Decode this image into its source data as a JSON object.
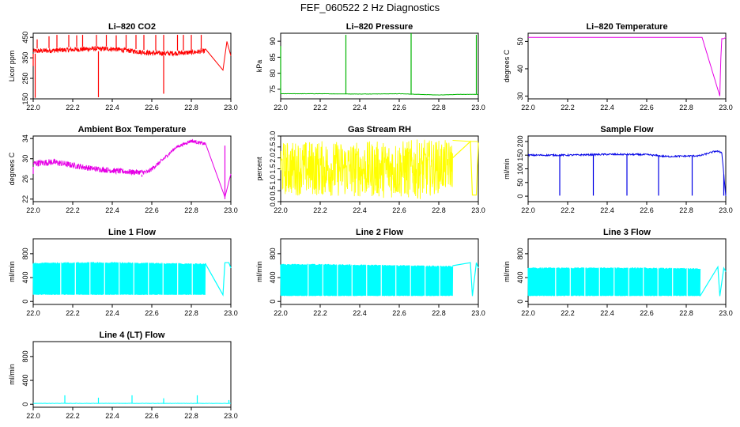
{
  "page_title": "FEF_060522  2 Hz Diagnostics",
  "chart_data": [
    {
      "id": "co2",
      "type": "line",
      "title": "Li–820 CO2",
      "ylabel": "Licor ppm",
      "color": "#ff0000",
      "xlim": [
        22.0,
        23.0
      ],
      "ylim": [
        150,
        470
      ],
      "xticks": [
        "22.0",
        "22.2",
        "22.4",
        "22.6",
        "22.8",
        "23.0"
      ],
      "yticks": [
        150,
        250,
        350,
        450
      ],
      "series": [
        {
          "name": "band_upper",
          "x": [
            22.0,
            22.1,
            22.2,
            22.3,
            22.4,
            22.5,
            22.6,
            22.7,
            22.8,
            22.87,
            22.96,
            22.98,
            23.0
          ],
          "y": [
            395,
            398,
            402,
            406,
            405,
            395,
            385,
            384,
            388,
            395,
            290,
            430,
            360
          ]
        },
        {
          "name": "band_lower",
          "x": [
            22.0,
            22.1,
            22.2,
            22.3,
            22.4,
            22.5,
            22.6,
            22.7,
            22.8,
            22.87
          ],
          "y": [
            370,
            374,
            378,
            382,
            382,
            372,
            360,
            360,
            364,
            372
          ]
        },
        {
          "name": "spikes_up",
          "x": [
            22.02,
            22.08,
            22.12,
            22.18,
            22.22,
            22.25,
            22.32,
            22.37,
            22.42,
            22.47,
            22.52,
            22.56,
            22.62,
            22.66,
            22.73,
            22.76,
            22.8,
            22.85
          ],
          "y": [
            440,
            455,
            462,
            462,
            460,
            462,
            462,
            462,
            460,
            462,
            462,
            462,
            462,
            462,
            462,
            462,
            462,
            462
          ]
        },
        {
          "name": "spikes_down",
          "x": [
            22.0,
            22.01,
            22.33,
            22.66
          ],
          "y": [
            310,
            155,
            158,
            175
          ]
        }
      ]
    },
    {
      "id": "pressure",
      "type": "line",
      "title": "Li–820 Pressure",
      "ylabel": "kPa",
      "color": "#00b400",
      "xlim": [
        22.0,
        23.0
      ],
      "ylim": [
        72,
        92.5
      ],
      "xticks": [
        "22.0",
        "22.2",
        "22.4",
        "22.6",
        "22.8",
        "23.0"
      ],
      "yticks": [
        75,
        80,
        85,
        90
      ],
      "series": [
        {
          "name": "baseline",
          "x": [
            22.0,
            22.2,
            22.4,
            22.6,
            22.8,
            22.9,
            23.0
          ],
          "y": [
            73.6,
            73.6,
            73.5,
            73.6,
            73.2,
            73.4,
            73.4
          ]
        },
        {
          "name": "spikes_up",
          "x": [
            22.0,
            22.33,
            22.66,
            22.99
          ],
          "y": [
            88.5,
            92.0,
            92.5,
            92.0
          ]
        }
      ]
    },
    {
      "id": "temperature",
      "type": "line",
      "title": "Li–820 Temperature",
      "ylabel": "degrees C",
      "color": "#e600e6",
      "xlim": [
        22.0,
        23.0
      ],
      "ylim": [
        29,
        53
      ],
      "xticks": [
        "22.0",
        "22.2",
        "22.4",
        "22.6",
        "22.8",
        "23.0"
      ],
      "yticks": [
        30,
        40,
        50
      ],
      "series": [
        {
          "name": "temp",
          "x": [
            22.0,
            22.88,
            22.97,
            22.975,
            22.98,
            22.99,
            23.0
          ],
          "y": [
            51.5,
            51.5,
            30.0,
            44.0,
            51.0,
            51.0,
            51.5
          ]
        }
      ]
    },
    {
      "id": "ambient",
      "type": "line",
      "title": "Ambient Box Temperature",
      "ylabel": "degrees C",
      "color": "#e600e6",
      "xlim": [
        22.0,
        23.0
      ],
      "ylim": [
        21.5,
        34.5
      ],
      "xticks": [
        "22.0",
        "22.2",
        "22.4",
        "22.6",
        "22.8",
        "23.0"
      ],
      "yticks": [
        22,
        26,
        30,
        34
      ],
      "series": [
        {
          "name": "band_upper",
          "x": [
            22.0,
            22.1,
            22.2,
            22.3,
            22.4,
            22.5,
            22.58,
            22.65,
            22.72,
            22.8,
            22.87,
            22.97,
            23.0
          ],
          "y": [
            29.7,
            30.0,
            29.3,
            28.6,
            28.2,
            27.9,
            27.8,
            30.0,
            32.5,
            33.9,
            33.2,
            22.4,
            27.0
          ]
        },
        {
          "name": "band_lower",
          "x": [
            22.0,
            22.1,
            22.2,
            22.3,
            22.4,
            22.5,
            22.58,
            22.65,
            22.72,
            22.8,
            22.87
          ],
          "y": [
            28.4,
            28.7,
            28.1,
            27.5,
            27.1,
            26.8,
            26.9,
            29.2,
            31.9,
            33.2,
            32.6
          ]
        },
        {
          "name": "dips",
          "x": [
            22.0,
            22.55,
            22.97
          ],
          "y": [
            27.0,
            26.4,
            22.0
          ]
        }
      ]
    },
    {
      "id": "rh",
      "type": "line",
      "title": "Gas Stream RH",
      "ylabel": "percent",
      "color": "#ffff00",
      "xlim": [
        22.0,
        23.0
      ],
      "ylim": [
        0,
        3.0
      ],
      "xticks": [
        "22.0",
        "22.2",
        "22.4",
        "22.6",
        "22.8",
        "23.0"
      ],
      "yticks": [
        "0.0",
        "0.5",
        "1.0",
        "1.5",
        "2.0",
        "2.5",
        "3.0"
      ],
      "series": [
        {
          "name": "band_upper",
          "x": [
            22.0,
            22.2,
            22.4,
            22.6,
            22.7,
            22.87,
            22.96,
            23.0
          ],
          "y": [
            2.75,
            2.8,
            2.75,
            2.8,
            2.85,
            2.8,
            2.75,
            2.75
          ]
        },
        {
          "name": "band_lower",
          "x": [
            22.0,
            22.2,
            22.4,
            22.6,
            22.7,
            22.87
          ],
          "y": [
            0.3,
            0.25,
            0.2,
            0.15,
            0.1,
            0.6
          ]
        },
        {
          "name": "tail",
          "x": [
            22.87,
            22.96,
            22.97,
            22.99,
            23.0
          ],
          "y": [
            2.0,
            2.75,
            0.3,
            0.3,
            2.7
          ]
        }
      ]
    },
    {
      "id": "sample_flow",
      "type": "line",
      "title": "Sample Flow",
      "ylabel": "ml/min",
      "color": "#0000e6",
      "xlim": [
        22.0,
        23.0
      ],
      "ylim": [
        -20,
        220
      ],
      "xticks": [
        "22.0",
        "22.2",
        "22.4",
        "22.6",
        "22.8",
        "23.0"
      ],
      "yticks": [
        0,
        50,
        100,
        150,
        200
      ],
      "series": [
        {
          "name": "flow",
          "x": [
            22.0,
            22.2,
            22.4,
            22.6,
            22.7,
            22.87,
            22.95,
            22.98,
            23.0
          ],
          "y": [
            150,
            150,
            153,
            152,
            145,
            148,
            165,
            160,
            0
          ]
        },
        {
          "name": "dips",
          "x": [
            22.16,
            22.33,
            22.5,
            22.66,
            22.83,
            22.99
          ],
          "y": [
            2,
            2,
            2,
            2,
            2,
            2
          ]
        }
      ]
    },
    {
      "id": "line1",
      "type": "line",
      "title": "Line 1 Flow",
      "ylabel": "ml/min",
      "color": "#00ffff",
      "xlim": [
        22.0,
        23.0
      ],
      "ylim": [
        -50,
        1050
      ],
      "xticks": [
        "22.0",
        "22.2",
        "22.4",
        "22.6",
        "22.8",
        "23.0"
      ],
      "yticks": [
        0,
        400,
        800
      ],
      "series": [
        {
          "name": "band_upper",
          "x": [
            22.0,
            22.2,
            22.4,
            22.6,
            22.8,
            22.87
          ],
          "y": [
            650,
            660,
            660,
            650,
            640,
            640
          ]
        },
        {
          "name": "band_lower",
          "x": [
            22.0,
            22.2,
            22.4,
            22.6,
            22.8,
            22.87
          ],
          "y": [
            110,
            110,
            110,
            110,
            110,
            110
          ]
        },
        {
          "name": "tail",
          "x": [
            22.87,
            22.96,
            22.97,
            22.99,
            23.0
          ],
          "y": [
            640,
            110,
            650,
            650,
            560
          ]
        }
      ]
    },
    {
      "id": "line2",
      "type": "line",
      "title": "Line 2 Flow",
      "ylabel": "ml/min",
      "color": "#00ffff",
      "xlim": [
        22.0,
        23.0
      ],
      "ylim": [
        -50,
        1050
      ],
      "xticks": [
        "22.0",
        "22.2",
        "22.4",
        "22.6",
        "22.8",
        "23.0"
      ],
      "yticks": [
        0,
        400,
        800
      ],
      "series": [
        {
          "name": "band_upper",
          "x": [
            22.0,
            22.2,
            22.4,
            22.6,
            22.8,
            22.87
          ],
          "y": [
            630,
            630,
            620,
            610,
            600,
            600
          ]
        },
        {
          "name": "band_lower",
          "x": [
            22.0,
            22.2,
            22.4,
            22.6,
            22.8,
            22.87
          ],
          "y": [
            90,
            90,
            90,
            90,
            90,
            90
          ]
        },
        {
          "name": "tail",
          "x": [
            22.87,
            22.96,
            22.97,
            22.99,
            23.0
          ],
          "y": [
            600,
            650,
            90,
            650,
            560
          ]
        }
      ]
    },
    {
      "id": "line3",
      "type": "line",
      "title": "Line 3 Flow",
      "ylabel": "ml/min",
      "color": "#00ffff",
      "xlim": [
        22.0,
        23.0
      ],
      "ylim": [
        -50,
        1050
      ],
      "xticks": [
        "22.0",
        "22.2",
        "22.4",
        "22.6",
        "22.8",
        "23.0"
      ],
      "yticks": [
        0,
        400,
        800
      ],
      "series": [
        {
          "name": "band_upper",
          "x": [
            22.0,
            22.2,
            22.4,
            22.6,
            22.8,
            22.87
          ],
          "y": [
            570,
            570,
            570,
            570,
            560,
            560
          ]
        },
        {
          "name": "band_lower",
          "x": [
            22.0,
            22.2,
            22.4,
            22.6,
            22.8,
            22.87
          ],
          "y": [
            90,
            90,
            90,
            90,
            90,
            90
          ]
        },
        {
          "name": "tail",
          "x": [
            22.87,
            22.96,
            22.97,
            22.99,
            23.0
          ],
          "y": [
            90,
            580,
            90,
            560,
            500
          ]
        }
      ]
    },
    {
      "id": "line4",
      "type": "line",
      "title": "Line 4 (LT) Flow",
      "ylabel": "ml/min",
      "color": "#00ffff",
      "xlim": [
        22.0,
        23.0
      ],
      "ylim": [
        -50,
        1050
      ],
      "xticks": [
        "22.0",
        "22.2",
        "22.4",
        "22.6",
        "22.8",
        "23.0"
      ],
      "yticks": [
        0,
        400,
        800
      ],
      "series": [
        {
          "name": "baseline",
          "x": [
            22.0,
            22.5,
            23.0
          ],
          "y": [
            15,
            15,
            15
          ]
        },
        {
          "name": "spikes_up",
          "x": [
            22.16,
            22.33,
            22.5,
            22.66,
            22.83,
            22.99
          ],
          "y": [
            150,
            110,
            150,
            100,
            150,
            70
          ]
        }
      ]
    }
  ]
}
